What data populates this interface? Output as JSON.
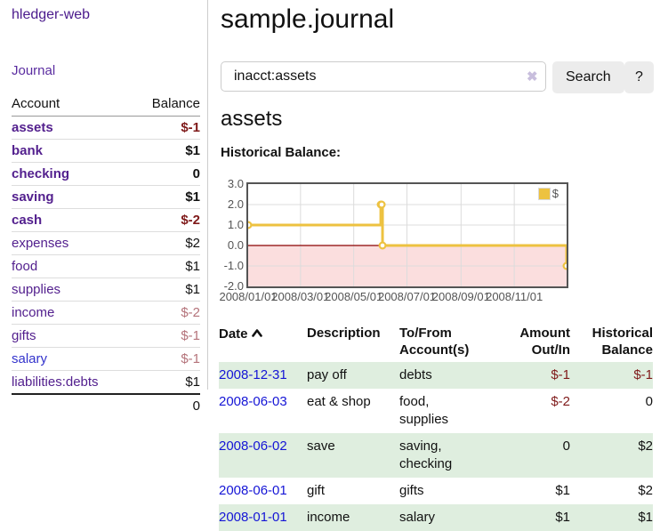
{
  "app": {
    "title": "hledger-web"
  },
  "sidebar": {
    "journal_label": "Journal",
    "table": {
      "headers": [
        "Account",
        "Balance"
      ],
      "rows": [
        {
          "account": "assets",
          "balance": "$-1",
          "depth": 1,
          "bold": true,
          "neg": "strong",
          "blue": false
        },
        {
          "account": "bank",
          "balance": "$1",
          "depth": 2,
          "bold": true,
          "neg": "none",
          "blue": false
        },
        {
          "account": "checking",
          "balance": "0",
          "depth": 3,
          "bold": true,
          "neg": "none",
          "blue": false
        },
        {
          "account": "saving",
          "balance": "$1",
          "depth": 3,
          "bold": true,
          "neg": "none",
          "blue": false
        },
        {
          "account": "cash",
          "balance": "$-2",
          "depth": 2,
          "bold": true,
          "neg": "strong",
          "blue": false
        },
        {
          "account": "expenses",
          "balance": "$2",
          "depth": 1,
          "bold": false,
          "neg": "none",
          "blue": false
        },
        {
          "account": "food",
          "balance": "$1",
          "depth": 2,
          "bold": false,
          "neg": "none",
          "blue": false
        },
        {
          "account": "supplies",
          "balance": "$1",
          "depth": 2,
          "bold": false,
          "neg": "none",
          "blue": false
        },
        {
          "account": "income",
          "balance": "$-2",
          "depth": 1,
          "bold": false,
          "neg": "muted",
          "blue": false
        },
        {
          "account": "gifts",
          "balance": "$-1",
          "depth": 2,
          "bold": false,
          "neg": "muted",
          "blue": false
        },
        {
          "account": "salary",
          "balance": "$-1",
          "depth": 2,
          "bold": false,
          "neg": "muted",
          "blue": true
        },
        {
          "account": "liabilities:debts",
          "balance": "$1",
          "depth": 1,
          "bold": false,
          "neg": "none",
          "blue": false
        }
      ],
      "total": "0"
    }
  },
  "main": {
    "title": "sample.journal",
    "search": {
      "value": "inacct:assets",
      "clear_icon": "✖",
      "button_label": "Search",
      "help_label": "?"
    },
    "account_heading": "assets",
    "chart_label": "Historical Balance:"
  },
  "chart_data": {
    "type": "line",
    "subtype": "steps-with-markers",
    "title": "Historical Balance",
    "xlim": [
      "2008-01-01",
      "2008-12-31"
    ],
    "ylim": [
      -2.0,
      3.0
    ],
    "grid": true,
    "legend_position": "top-right",
    "series": [
      {
        "name": "$",
        "points": [
          [
            "2008-01-01",
            1
          ],
          [
            "2008-06-01",
            2
          ],
          [
            "2008-06-02",
            2
          ],
          [
            "2008-06-03",
            0
          ],
          [
            "2008-12-31",
            -1
          ]
        ]
      }
    ],
    "xticks": [
      {
        "date": "2008-01-01",
        "label": "2008/01/01"
      },
      {
        "date": "2008-03-01",
        "label": "2008/03/01"
      },
      {
        "date": "2008-05-01",
        "label": "2008/05/01"
      },
      {
        "date": "2008-07-01",
        "label": "2008/07/01"
      },
      {
        "date": "2008-09-01",
        "label": "2008/09/01"
      },
      {
        "date": "2008-11-01",
        "label": "2008/11/01"
      }
    ],
    "yticks": [
      {
        "value": 3.0,
        "label": "3.0"
      },
      {
        "value": 2.0,
        "label": "2.0"
      },
      {
        "value": 1.0,
        "label": "1.0"
      },
      {
        "value": 0.0,
        "label": "0.0"
      },
      {
        "value": -1.0,
        "label": "-1.0"
      },
      {
        "value": -2.0,
        "label": "-2.0"
      }
    ],
    "colors": {
      "series": "#edc240",
      "marker_fill": "#ffffff",
      "zero_line": "#8b0000",
      "below_zero_fill": "#fbdede",
      "gridline": "#dcdcdc",
      "plot_border": "#545454"
    }
  },
  "register": {
    "headers": [
      "Date",
      "Description",
      "To/From Account(s)",
      "Amount Out/In",
      "Historical Balance"
    ],
    "rows": [
      {
        "date": "2008-12-31",
        "description": "pay off",
        "accounts": "debts",
        "amount": "$-1",
        "balance": "$-1",
        "amount_neg": true,
        "balance_neg": true
      },
      {
        "date": "2008-06-03",
        "description": "eat & shop",
        "accounts": "food, supplies",
        "amount": "$-2",
        "balance": "0",
        "amount_neg": true,
        "balance_neg": false
      },
      {
        "date": "2008-06-02",
        "description": "save",
        "accounts": "saving, checking",
        "amount": "0",
        "balance": "$2",
        "amount_neg": false,
        "balance_neg": false
      },
      {
        "date": "2008-06-01",
        "description": "gift",
        "accounts": "gifts",
        "amount": "$1",
        "balance": "$2",
        "amount_neg": false,
        "balance_neg": false
      },
      {
        "date": "2008-01-01",
        "description": "income",
        "accounts": "salary",
        "amount": "$1",
        "balance": "$1",
        "amount_neg": false,
        "balance_neg": false
      }
    ]
  }
}
